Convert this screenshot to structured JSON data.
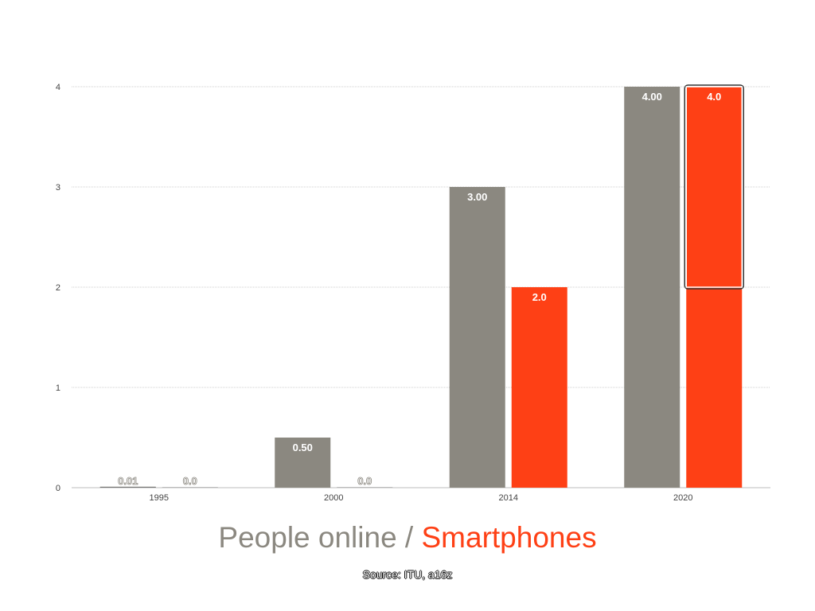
{
  "title_parts": {
    "people": "People online",
    "separator": " / ",
    "smartphones": "Smartphones"
  },
  "source": "Source: ITU, a16z",
  "colors": {
    "people": "#8b8880",
    "smartphones": "#fe4015",
    "grid": "#cfcfcf",
    "axis": "#bdbdbd"
  },
  "chart_data": {
    "type": "bar",
    "categories": [
      "1995",
      "2000",
      "2014",
      "2020"
    ],
    "series": [
      {
        "name": "People online",
        "values": [
          0.01,
          0.5,
          3.0,
          4.0
        ],
        "labels": [
          "0.01",
          "0.50",
          "3.00",
          "4.00"
        ]
      },
      {
        "name": "Smartphones",
        "values": [
          0.0,
          0.0,
          2.0,
          4.0
        ],
        "labels": [
          "0.0",
          "0.0",
          "2.0",
          "4.0"
        ]
      }
    ],
    "yticks": [
      "0",
      "1",
      "2",
      "3",
      "4"
    ],
    "ylim": [
      0,
      4
    ],
    "grid": true,
    "legend": "none",
    "highlight": {
      "series": 1,
      "category": 3,
      "from": 2,
      "to": 4
    }
  }
}
